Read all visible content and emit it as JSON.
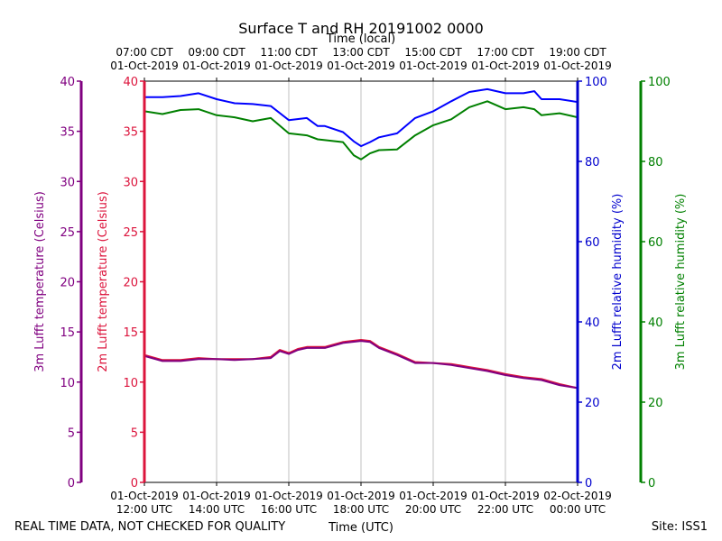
{
  "chart_data": {
    "type": "line",
    "title": "Surface T and RH 20191002 0000",
    "top_axis_label": "Time (local)",
    "bottom_axis_label": "Time (UTC)",
    "footer_left": "REAL TIME DATA, NOT CHECKED FOR QUALITY",
    "footer_right": "Site: ISS1",
    "x_range_hours": [
      12,
      24
    ],
    "grid": true,
    "bottom_ticks": [
      {
        "hour": 12,
        "line1": "01-Oct-2019",
        "line2": "12:00 UTC"
      },
      {
        "hour": 14,
        "line1": "01-Oct-2019",
        "line2": "14:00 UTC"
      },
      {
        "hour": 16,
        "line1": "01-Oct-2019",
        "line2": "16:00 UTC"
      },
      {
        "hour": 18,
        "line1": "01-Oct-2019",
        "line2": "18:00 UTC"
      },
      {
        "hour": 20,
        "line1": "01-Oct-2019",
        "line2": "20:00 UTC"
      },
      {
        "hour": 22,
        "line1": "01-Oct-2019",
        "line2": "22:00 UTC"
      },
      {
        "hour": 24,
        "line1": "02-Oct-2019",
        "line2": "00:00 UTC"
      }
    ],
    "top_ticks": [
      {
        "hour": 12,
        "line1": "07:00 CDT",
        "line2": "01-Oct-2019"
      },
      {
        "hour": 14,
        "line1": "09:00 CDT",
        "line2": "01-Oct-2019"
      },
      {
        "hour": 16,
        "line1": "11:00 CDT",
        "line2": "01-Oct-2019"
      },
      {
        "hour": 18,
        "line1": "13:00 CDT",
        "line2": "01-Oct-2019"
      },
      {
        "hour": 20,
        "line1": "15:00 CDT",
        "line2": "01-Oct-2019"
      },
      {
        "hour": 22,
        "line1": "17:00 CDT",
        "line2": "01-Oct-2019"
      },
      {
        "hour": 24,
        "line1": "19:00 CDT",
        "line2": "01-Oct-2019"
      }
    ],
    "axes": [
      {
        "id": "t3m",
        "side": "left",
        "label": "3m Lufft temperature (Celsius)",
        "color": "#800080",
        "ylim": [
          0,
          40
        ],
        "ticks": [
          0,
          5,
          10,
          15,
          20,
          25,
          30,
          35,
          40
        ]
      },
      {
        "id": "t2m",
        "side": "left",
        "label": "2m Lufft temperature (Celsius)",
        "color": "#dc143c",
        "ylim": [
          0,
          40
        ],
        "ticks": [
          0,
          5,
          10,
          15,
          20,
          25,
          30,
          35,
          40
        ]
      },
      {
        "id": "rh2m",
        "side": "right",
        "label": "2m Lufft relative humidity (%)",
        "color": "#0000cd",
        "ylim": [
          0,
          100
        ],
        "ticks": [
          0,
          20,
          40,
          60,
          80,
          100
        ]
      },
      {
        "id": "rh3m",
        "side": "right",
        "label": "3m Lufft relative humidity (%)",
        "color": "#008000",
        "ylim": [
          0,
          100
        ],
        "ticks": [
          0,
          20,
          40,
          60,
          80,
          100
        ]
      }
    ],
    "series": [
      {
        "name": "2m Lufft relative humidity",
        "axis": "rh2m",
        "color": "#0000ff",
        "x": [
          12.0,
          12.5,
          13.0,
          13.5,
          14.0,
          14.5,
          15.0,
          15.5,
          16.0,
          16.5,
          16.8,
          17.0,
          17.5,
          17.8,
          18.0,
          18.25,
          18.5,
          19.0,
          19.5,
          20.0,
          20.5,
          21.0,
          21.5,
          22.0,
          22.5,
          22.8,
          23.0,
          23.5,
          24.0
        ],
        "y": [
          96.0,
          96.0,
          96.3,
          97.0,
          95.5,
          94.5,
          94.3,
          93.8,
          90.3,
          90.8,
          88.8,
          88.8,
          87.3,
          85.0,
          83.8,
          84.8,
          86.0,
          87.0,
          90.8,
          92.5,
          95.0,
          97.3,
          98.0,
          97.0,
          97.0,
          97.5,
          95.5,
          95.5,
          94.8
        ]
      },
      {
        "name": "3m Lufft relative humidity",
        "axis": "rh3m",
        "color": "#008000",
        "x": [
          12.0,
          12.5,
          13.0,
          13.5,
          14.0,
          14.5,
          15.0,
          15.5,
          16.0,
          16.5,
          16.8,
          17.0,
          17.5,
          17.8,
          18.0,
          18.25,
          18.5,
          19.0,
          19.5,
          20.0,
          20.5,
          21.0,
          21.5,
          22.0,
          22.5,
          22.8,
          23.0,
          23.5,
          24.0
        ],
        "y": [
          92.5,
          91.8,
          92.8,
          93.0,
          91.5,
          91.0,
          90.0,
          90.8,
          87.0,
          86.5,
          85.5,
          85.3,
          84.8,
          81.5,
          80.5,
          82.0,
          82.8,
          83.0,
          86.5,
          89.0,
          90.5,
          93.5,
          95.0,
          93.0,
          93.5,
          93.0,
          91.5,
          92.0,
          91.0
        ]
      },
      {
        "name": "2m Lufft temperature",
        "axis": "t2m",
        "color": "#dc143c",
        "x": [
          12.0,
          12.5,
          13.0,
          13.5,
          14.0,
          14.5,
          15.0,
          15.5,
          15.75,
          16.0,
          16.25,
          16.5,
          17.0,
          17.5,
          18.0,
          18.25,
          18.5,
          19.0,
          19.5,
          20.0,
          20.5,
          21.0,
          21.5,
          22.0,
          22.5,
          23.0,
          23.5,
          24.0
        ],
        "y": [
          12.7,
          12.2,
          12.2,
          12.4,
          12.3,
          12.3,
          12.3,
          12.5,
          13.2,
          12.9,
          13.3,
          13.5,
          13.5,
          14.0,
          14.2,
          14.1,
          13.5,
          12.8,
          12.0,
          11.9,
          11.8,
          11.5,
          11.2,
          10.8,
          10.5,
          10.3,
          9.8,
          9.4
        ]
      },
      {
        "name": "3m Lufft temperature",
        "axis": "t3m",
        "color": "#800080",
        "x": [
          12.0,
          12.5,
          13.0,
          13.5,
          14.0,
          14.5,
          15.0,
          15.5,
          15.75,
          16.0,
          16.25,
          16.5,
          17.0,
          17.5,
          18.0,
          18.25,
          18.5,
          19.0,
          19.5,
          20.0,
          20.5,
          21.0,
          21.5,
          22.0,
          22.5,
          23.0,
          23.5,
          24.0
        ],
        "y": [
          12.6,
          12.1,
          12.1,
          12.3,
          12.3,
          12.2,
          12.3,
          12.4,
          13.1,
          12.8,
          13.2,
          13.4,
          13.4,
          13.9,
          14.1,
          14.0,
          13.4,
          12.7,
          11.9,
          11.9,
          11.7,
          11.4,
          11.1,
          10.7,
          10.4,
          10.2,
          9.7,
          9.4
        ]
      }
    ]
  }
}
